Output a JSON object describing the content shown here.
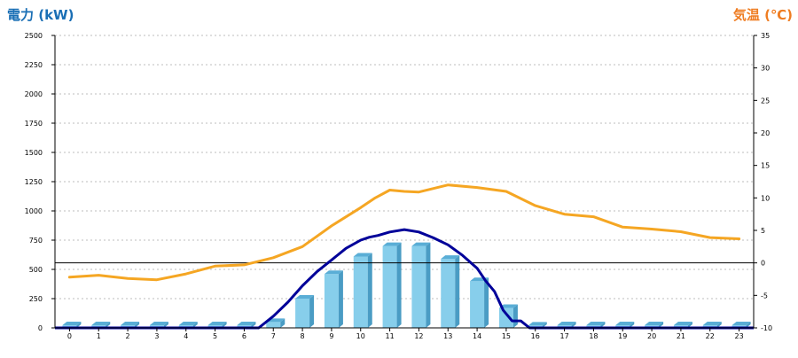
{
  "left_axis_label": "電力 (kW)",
  "right_axis_label": "気温 (℃)",
  "colors": {
    "left_label": "#1a6fb5",
    "right_label": "#ef7d22",
    "bar_front": "#87ceeb",
    "bar_side": "#4a9cc4",
    "bar_top": "#5aaed6",
    "line_power": "#000099",
    "line_temp": "#f5a623",
    "grid": "#bdbdbd",
    "zero_line": "#000000"
  },
  "chart_data": {
    "type": "bar",
    "categories": [
      "0",
      "1",
      "2",
      "3",
      "4",
      "5",
      "6",
      "7",
      "8",
      "9",
      "10",
      "11",
      "12",
      "13",
      "14",
      "15",
      "16",
      "17",
      "18",
      "19",
      "20",
      "21",
      "22",
      "23"
    ],
    "series": [
      {
        "type": "bar",
        "axis": "left",
        "values": [
          0,
          0,
          0,
          0,
          0,
          0,
          0,
          50,
          250,
          460,
          610,
          700,
          700,
          590,
          400,
          170,
          20,
          0,
          0,
          0,
          0,
          0,
          0,
          0
        ]
      },
      {
        "type": "line",
        "axis": "left",
        "x": [
          6.5,
          7,
          7.5,
          8,
          8.5,
          9,
          9.5,
          10,
          10.3,
          10.6,
          11,
          11.5,
          12,
          12.5,
          13,
          13.5,
          14,
          14.3,
          14.6,
          14.9,
          15.2,
          15.5,
          15.8,
          16.1
        ],
        "values": [
          0,
          100,
          220,
          360,
          480,
          580,
          680,
          750,
          775,
          790,
          820,
          840,
          820,
          770,
          710,
          620,
          510,
          400,
          310,
          150,
          60,
          60,
          0,
          0
        ]
      },
      {
        "type": "line",
        "axis": "right",
        "x": [
          0,
          1,
          2,
          3,
          4,
          5,
          6,
          7,
          8,
          9,
          10,
          10.5,
          11,
          11.5,
          12,
          13,
          14,
          15,
          16,
          17,
          18,
          19,
          20,
          21,
          22,
          23
        ],
        "values": [
          -2.2,
          -1.9,
          -2.4,
          -2.6,
          -1.7,
          -0.5,
          -0.3,
          0.8,
          2.5,
          5.7,
          8.5,
          10,
          11.2,
          11,
          10.9,
          12,
          11.6,
          11,
          8.8,
          7.5,
          7.1,
          5.5,
          5.2,
          4.8,
          3.9,
          3.7
        ]
      }
    ],
    "ylim": [
      0,
      2500
    ],
    "yticks": [
      0,
      250,
      500,
      750,
      1000,
      1250,
      1500,
      1750,
      2000,
      2250,
      2500
    ],
    "y2lim": [
      -10,
      35
    ],
    "y2ticks": [
      -10,
      -5,
      0,
      5,
      10,
      15,
      20,
      25,
      30,
      35
    ],
    "grid": true
  }
}
